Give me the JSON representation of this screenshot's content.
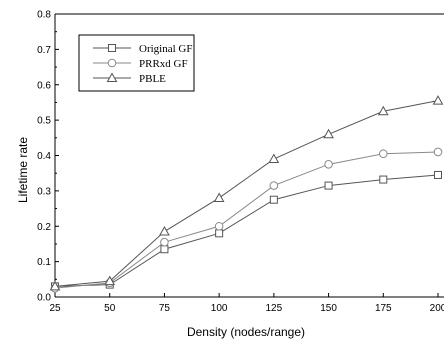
{
  "chart_data": {
    "type": "line",
    "title": "",
    "xlabel": "Density (nodes/range)",
    "ylabel": "Lifetime rate",
    "x": [
      25,
      50,
      75,
      100,
      125,
      150,
      175,
      200
    ],
    "x_tick_labels": [
      "25",
      "50",
      "75",
      "100",
      "125",
      "150",
      "175",
      "200"
    ],
    "xlim": [
      25,
      200
    ],
    "ylim": [
      0.0,
      0.8
    ],
    "y_ticks": [
      0.0,
      0.1,
      0.2,
      0.3,
      0.4,
      0.5,
      0.6,
      0.7,
      0.8
    ],
    "y_tick_labels": [
      "0.0",
      "0.1",
      "0.2",
      "0.3",
      "0.4",
      "0.5",
      "0.6",
      "0.7",
      "0.8"
    ],
    "grid": false,
    "legend_position": "top-left",
    "series": [
      {
        "name": "Original GF",
        "marker": "square",
        "color": "#555555",
        "values": [
          0.03,
          0.035,
          0.135,
          0.18,
          0.275,
          0.315,
          0.332,
          0.345
        ]
      },
      {
        "name": "PRRxd GF",
        "marker": "circle",
        "color": "#888888",
        "values": [
          0.025,
          0.04,
          0.155,
          0.2,
          0.315,
          0.375,
          0.405,
          0.41
        ]
      },
      {
        "name": "PBLE",
        "marker": "triangle",
        "color": "#555555",
        "values": [
          0.03,
          0.045,
          0.185,
          0.28,
          0.39,
          0.46,
          0.525,
          0.555
        ]
      }
    ]
  }
}
